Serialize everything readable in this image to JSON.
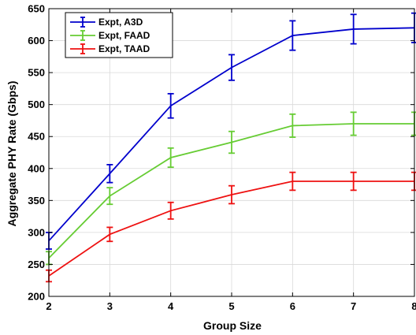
{
  "chart_data": {
    "type": "line",
    "xlabel": "Group Size",
    "ylabel": "Aggregate PHY Rate (Gbps)",
    "x": [
      2,
      3,
      4,
      5,
      6,
      7,
      8
    ],
    "xlim": [
      2,
      8
    ],
    "ylim": [
      200,
      650
    ],
    "xticks": [
      "2",
      "3",
      "4",
      "5",
      "6",
      "7",
      "8"
    ],
    "yticks": [
      "200",
      "250",
      "300",
      "350",
      "400",
      "450",
      "500",
      "550",
      "600",
      "650"
    ],
    "grid": true,
    "legend_position": "top-left",
    "series": [
      {
        "name": "Expt, A3D",
        "color": "#0000cc",
        "values": [
          287,
          392,
          498,
          558,
          608,
          618,
          620
        ],
        "err": [
          13,
          14,
          19,
          20,
          23,
          23,
          23
        ]
      },
      {
        "name": "Expt, FAAD",
        "color": "#66cc33",
        "values": [
          260,
          357,
          417,
          441,
          467,
          470,
          470
        ],
        "err": [
          10,
          13,
          15,
          17,
          18,
          18,
          18
        ]
      },
      {
        "name": "Expt, TAAD",
        "color": "#ee1111",
        "values": [
          232,
          297,
          334,
          359,
          380,
          380,
          380
        ],
        "err": [
          9,
          11,
          13,
          14,
          14,
          14,
          14
        ]
      }
    ]
  }
}
